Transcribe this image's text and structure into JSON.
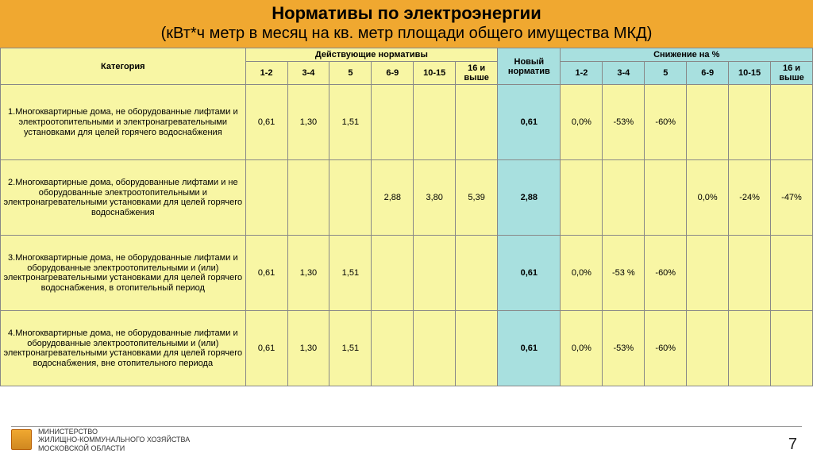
{
  "title": {
    "main": "Нормативы по электроэнергии",
    "sub": "(кВт*ч метр в месяц на кв. метр  площади общего имущества МКД)"
  },
  "headers": {
    "category": "Категория",
    "current": "Действующие нормативы",
    "new": "Новый норматив",
    "reduction": "Снижение на %",
    "cols": [
      "1-2",
      "3-4",
      "5",
      "6-9",
      "10-15",
      "16 и выше"
    ]
  },
  "rows": [
    {
      "cat": "1.Многоквартирные дома, не оборудованные лифтами и электроотопительными и электронагревательными установками для целей горячего водоснабжения",
      "cur": [
        "0,61",
        "1,30",
        "1,51",
        "",
        "",
        ""
      ],
      "new": "0,61",
      "red": [
        "0,0%",
        "-53%",
        "-60%",
        "",
        "",
        ""
      ]
    },
    {
      "cat": "2.Многоквартирные дома, оборудованные лифтами и не оборудованные электроотопительными и электронагревательными установками для целей горячего водоснабжения",
      "cur": [
        "",
        "",
        "",
        "2,88",
        "3,80",
        "5,39"
      ],
      "new": "2,88",
      "red": [
        "",
        "",
        "",
        "0,0%",
        "-24%",
        "-47%"
      ]
    },
    {
      "cat": "3.Многоквартирные дома, не оборудованные лифтами и оборудованные электроотопительными и (или) электронагревательными установками для целей горячего водоснабжения, в отопительный период",
      "cur": [
        "0,61",
        "1,30",
        "1,51",
        "",
        "",
        ""
      ],
      "new": "0,61",
      "red": [
        "0,0%",
        "-53 %",
        "-60%",
        "",
        "",
        ""
      ]
    },
    {
      "cat": "4.Многоквартирные дома, не оборудованные лифтами и оборудованные электроотопительными и (или) электронагревательными установками для целей горячего водоснабжения, вне отопительного периода",
      "cur": [
        "0,61",
        "1,30",
        "1,51",
        "",
        "",
        ""
      ],
      "new": "0,61",
      "red": [
        "0,0%",
        "-53%",
        "-60%",
        "",
        "",
        ""
      ]
    }
  ],
  "footer": {
    "line1": "МИНИСТЕРСТВО",
    "line2": "ЖИЛИЩНО-КОММУНАЛЬНОГО ХОЗЯЙСТВА",
    "line3": "МОСКОВСКОЙ ОБЛАСТИ"
  },
  "page": "7",
  "colors": {
    "title_bg": "#f0a830",
    "teal": "#a8e0df",
    "yellow": "#f8f6a4",
    "border": "#888"
  }
}
